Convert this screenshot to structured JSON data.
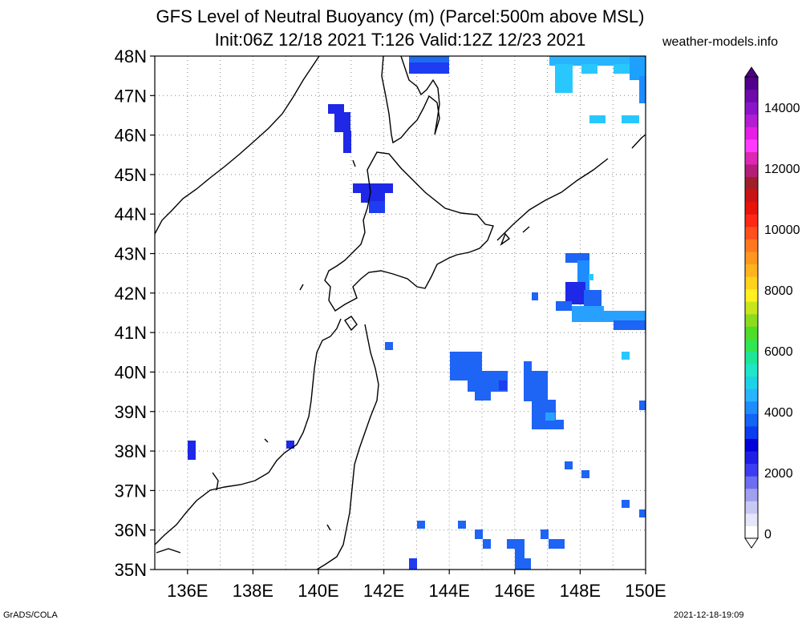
{
  "header": {
    "title_line1": "GFS Level of Neutral Buoyancy (m) (Parcel:500m above MSL)",
    "title_line2": "Init:06Z 12/18 2021 T:126 Valid:12Z 12/23 2021",
    "site": "weather-models.info"
  },
  "footer": {
    "left": "GrADS/COLA",
    "right": "2021-12-18-19:09"
  },
  "map": {
    "lat_labels": [
      "35N",
      "36N",
      "37N",
      "38N",
      "39N",
      "40N",
      "41N",
      "42N",
      "43N",
      "44N",
      "45N",
      "46N",
      "47N",
      "48N"
    ],
    "lon_labels": [
      "136E",
      "138E",
      "140E",
      "142E",
      "144E",
      "146E",
      "148E",
      "150E"
    ],
    "lon_range": [
      135,
      150
    ],
    "lat_range": [
      35,
      48
    ],
    "grid": "dotted, every 1 degree"
  },
  "colorbar": {
    "labels": [
      "0",
      "2000",
      "4000",
      "6000",
      "8000",
      "10000",
      "12000",
      "14000"
    ],
    "colors": [
      "#ffffff",
      "#e6e6fa",
      "#c8c8f5",
      "#a0a0f0",
      "#6e6ef0",
      "#3c3cf0",
      "#1e1ee6",
      "#0000dc",
      "#0a3cf0",
      "#1464f5",
      "#1e8cff",
      "#28b4ff",
      "#1ed2e6",
      "#1ee6c8",
      "#1ee696",
      "#32e650",
      "#50dc28",
      "#8cdc1e",
      "#c8e61e",
      "#fff01e",
      "#ffd21e",
      "#ffb41e",
      "#ff961e",
      "#ff781e",
      "#ff501e",
      "#ff2814",
      "#e6140a",
      "#c81414",
      "#a01e28",
      "#b41e78",
      "#dc28b4",
      "#ff3cff",
      "#e61ee6",
      "#b41ed2",
      "#8c14c8",
      "#6e0aaa",
      "#50008c"
    ],
    "range": [
      0,
      15000
    ]
  }
}
